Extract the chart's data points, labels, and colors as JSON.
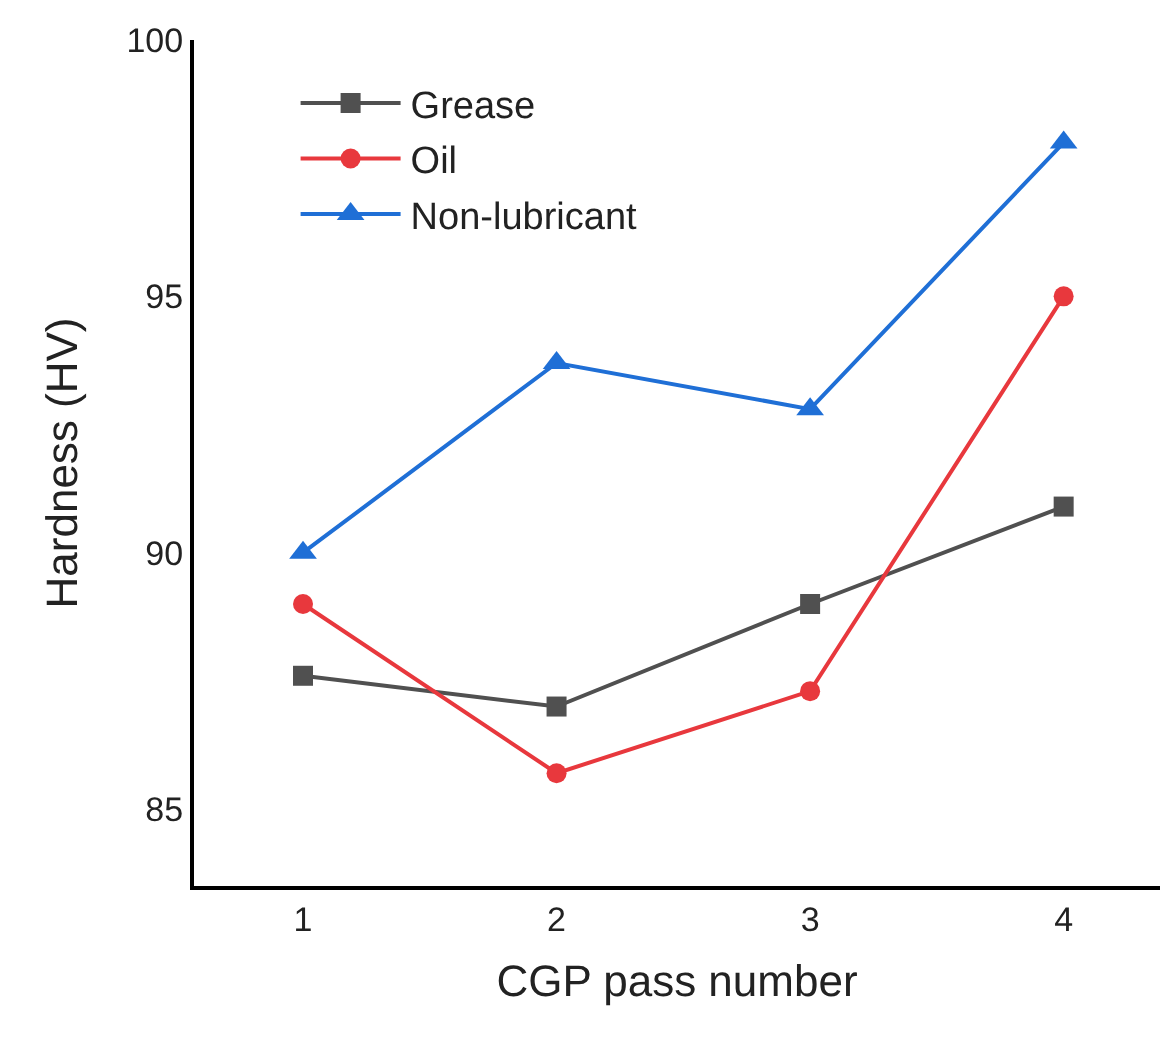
{
  "chart_data": {
    "type": "line",
    "xlabel": "CGP pass number",
    "ylabel": "Hardness (HV)",
    "x": [
      1,
      2,
      3,
      4
    ],
    "xlim": [
      0.57,
      4.38
    ],
    "xticks": [
      1,
      2,
      3,
      4
    ],
    "ylim": [
      83.5,
      100
    ],
    "yticks": [
      85,
      90,
      95,
      100
    ],
    "legend": "top left",
    "line_style": "solid",
    "series": [
      {
        "name": "Grease",
        "color": "#505050",
        "marker": "square",
        "values": [
          87.6,
          87.0,
          89.0,
          90.9
        ]
      },
      {
        "name": "Oil",
        "color": "#e8383d",
        "marker": "circle",
        "values": [
          89.0,
          85.7,
          87.3,
          95.0
        ]
      },
      {
        "name": "Non-lubricant",
        "color": "#1f6fd6",
        "marker": "triangle",
        "values": [
          90.0,
          93.7,
          92.8,
          98.0
        ]
      }
    ]
  }
}
